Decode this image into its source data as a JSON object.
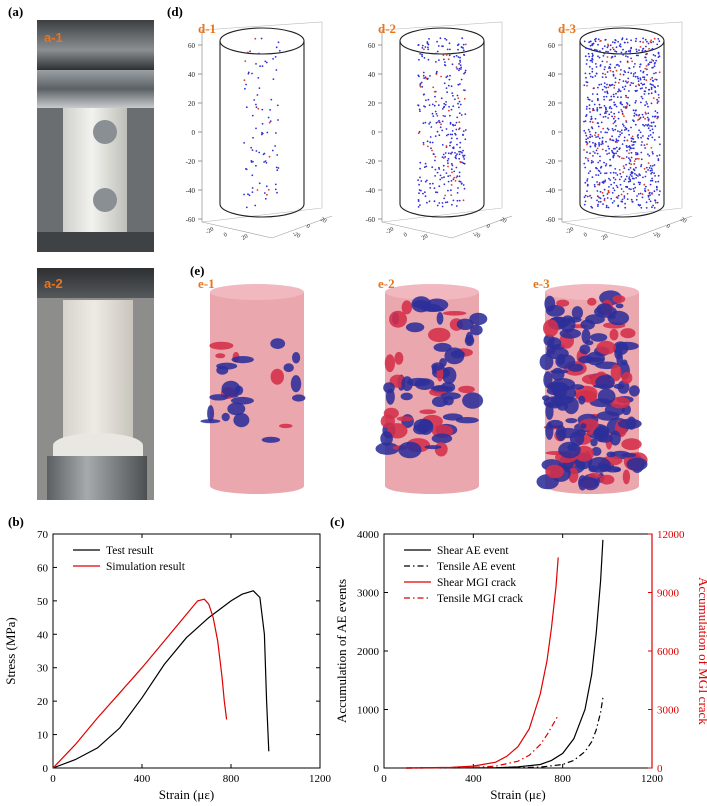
{
  "panels": {
    "a": {
      "label": "(a)",
      "sub1": "a-1",
      "sub2": "a-2"
    },
    "d": {
      "label": "(d)",
      "subs": [
        "d-1",
        "d-2",
        "d-3"
      ],
      "zticks": [
        "60",
        "40",
        "20",
        "0",
        "-20",
        "-40",
        "-60"
      ]
    },
    "e": {
      "label": "(e)",
      "subs": [
        "e-1",
        "e-2",
        "e-3"
      ]
    },
    "b": {
      "label": "(b)"
    },
    "c": {
      "label": "(c)"
    }
  },
  "chart_data": [
    {
      "id": "b",
      "type": "line",
      "xlabel": "Strain (με)",
      "ylabel": "Stress (MPa)",
      "xlim": [
        0,
        1200
      ],
      "ylim": [
        0,
        70
      ],
      "xticks": [
        0,
        400,
        800,
        1200
      ],
      "yticks": [
        0,
        10,
        20,
        30,
        40,
        50,
        60,
        70
      ],
      "legend": "top-left",
      "series": [
        {
          "name": "Test result",
          "color": "#000000",
          "x": [
            0,
            100,
            200,
            300,
            400,
            500,
            600,
            700,
            800,
            850,
            900,
            930,
            950,
            960,
            970
          ],
          "y": [
            0,
            2.5,
            6,
            12,
            21,
            31,
            39,
            45,
            50,
            52,
            53,
            51,
            40,
            20,
            5
          ]
        },
        {
          "name": "Simulation result",
          "color": "#e00000",
          "x": [
            0,
            100,
            200,
            300,
            400,
            500,
            600,
            650,
            680,
            700,
            720,
            740,
            760,
            770,
            780
          ],
          "y": [
            0,
            7,
            15,
            22.5,
            30,
            38,
            46,
            50,
            50.5,
            49,
            45,
            38,
            27,
            20,
            14.5
          ]
        }
      ]
    },
    {
      "id": "c",
      "type": "line",
      "xlabel": "Strain (με)",
      "ylabel": "Accumulation of AE events",
      "ylabel_right": "Accumulation of MGI crack",
      "xlim": [
        0,
        1200
      ],
      "ylim": [
        0,
        4000
      ],
      "ylim_right": [
        0,
        12000
      ],
      "xticks": [
        0,
        400,
        800,
        1200
      ],
      "yticks": [
        0,
        1000,
        2000,
        3000,
        4000
      ],
      "yticks_right": [
        0,
        3000,
        6000,
        9000,
        12000
      ],
      "legend": "top-left",
      "series": [
        {
          "name": "Shear AE event",
          "color": "#000000",
          "dash": "solid",
          "axis": "left",
          "x": [
            100,
            500,
            600,
            700,
            750,
            800,
            850,
            900,
            930,
            950,
            970,
            980
          ],
          "y": [
            0,
            5,
            20,
            60,
            130,
            250,
            500,
            1000,
            1600,
            2300,
            3200,
            3900
          ]
        },
        {
          "name": "Tensile AE event",
          "color": "#000000",
          "dash": "dashdot",
          "axis": "left",
          "x": [
            100,
            600,
            700,
            800,
            850,
            900,
            930,
            950,
            970,
            980
          ],
          "y": [
            0,
            5,
            15,
            60,
            130,
            280,
            450,
            650,
            950,
            1200
          ]
        },
        {
          "name": "Shear MGI crack",
          "color": "#e00000",
          "dash": "solid",
          "axis": "right",
          "x": [
            100,
            300,
            400,
            500,
            550,
            600,
            650,
            700,
            730,
            750,
            770,
            780
          ],
          "y": [
            0,
            30,
            100,
            300,
            600,
            1100,
            2000,
            3800,
            5500,
            7200,
            9300,
            10800
          ]
        },
        {
          "name": "Tensile MGI crack",
          "color": "#e00000",
          "dash": "dashdot",
          "axis": "right",
          "x": [
            100,
            400,
            500,
            600,
            650,
            700,
            730,
            760,
            780
          ],
          "y": [
            0,
            30,
            100,
            350,
            650,
            1200,
            1700,
            2300,
            2700
          ]
        }
      ]
    }
  ]
}
